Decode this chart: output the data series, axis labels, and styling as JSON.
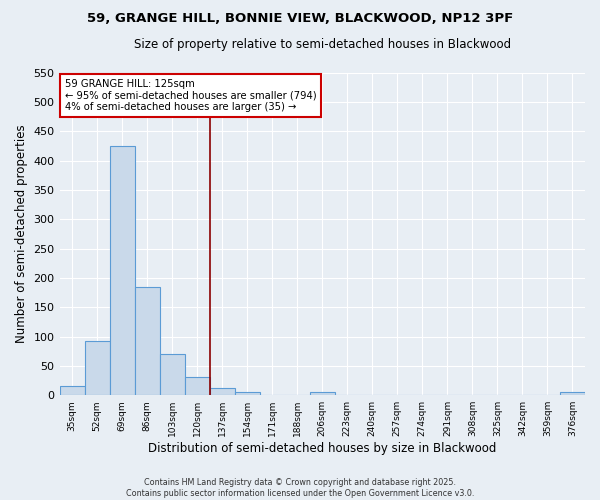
{
  "title1": "59, GRANGE HILL, BONNIE VIEW, BLACKWOOD, NP12 3PF",
  "title2": "Size of property relative to semi-detached houses in Blackwood",
  "xlabel": "Distribution of semi-detached houses by size in Blackwood",
  "ylabel": "Number of semi-detached properties",
  "bin_labels": [
    "35sqm",
    "52sqm",
    "69sqm",
    "86sqm",
    "103sqm",
    "120sqm",
    "137sqm",
    "154sqm",
    "171sqm",
    "188sqm",
    "206sqm",
    "223sqm",
    "240sqm",
    "257sqm",
    "274sqm",
    "291sqm",
    "308sqm",
    "325sqm",
    "342sqm",
    "359sqm",
    "376sqm"
  ],
  "bin_values": [
    16,
    93,
    425,
    184,
    70,
    31,
    13,
    6,
    0,
    0,
    5,
    0,
    0,
    0,
    0,
    0,
    0,
    0,
    0,
    0,
    5
  ],
  "bar_color": "#c9d9ea",
  "bar_edge_color": "#5b9bd5",
  "bg_color": "#e8eef4",
  "grid_color": "#ffffff",
  "fig_bg_color": "#e8eef4",
  "red_line_x": 5.5,
  "annotation_title": "59 GRANGE HILL: 125sqm",
  "annotation_line1": "← 95% of semi-detached houses are smaller (794)",
  "annotation_line2": "4% of semi-detached houses are larger (35) →",
  "annotation_color": "#cc0000",
  "footer1": "Contains HM Land Registry data © Crown copyright and database right 2025.",
  "footer2": "Contains public sector information licensed under the Open Government Licence v3.0.",
  "ylim": [
    0,
    550
  ],
  "yticks": [
    0,
    50,
    100,
    150,
    200,
    250,
    300,
    350,
    400,
    450,
    500,
    550
  ]
}
